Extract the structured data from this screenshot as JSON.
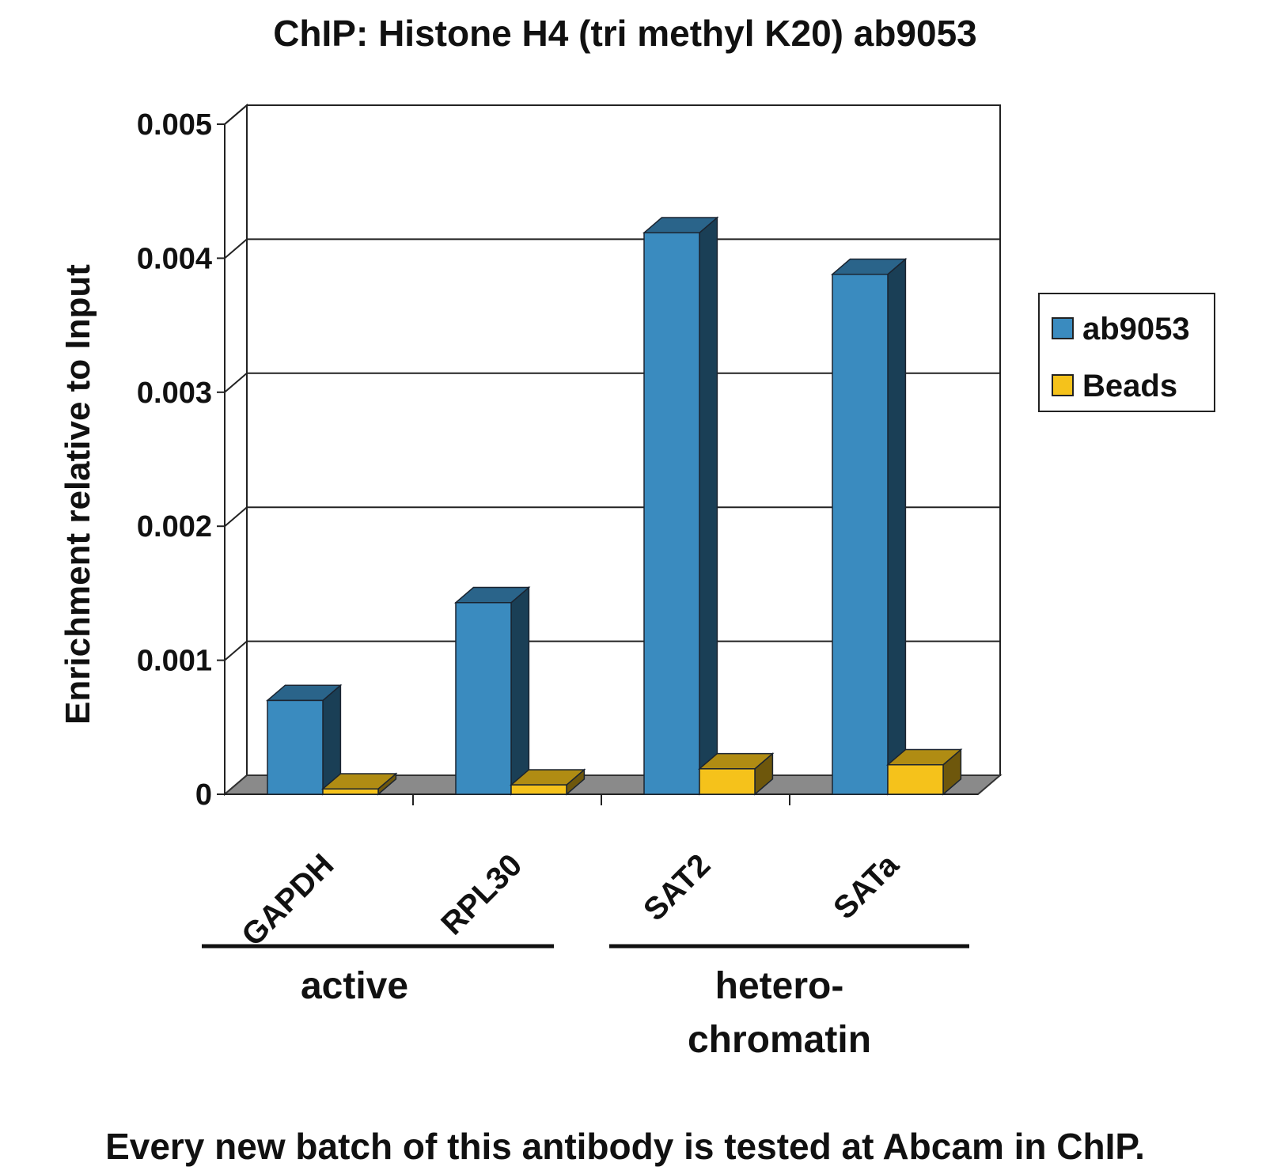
{
  "chart_data": {
    "type": "bar",
    "title": "ChIP: Histone H4 (tri methyl K20) ab9053",
    "ylabel": "Enrichment relative to Input",
    "xlabel": "",
    "ylim": [
      0,
      0.005
    ],
    "yticks": [
      "0",
      "0.001",
      "0.002",
      "0.003",
      "0.004",
      "0.005"
    ],
    "categories": [
      "GAPDH",
      "RPL30",
      "SAT2",
      "SATa"
    ],
    "series": [
      {
        "name": "ab9053",
        "color": "#3a8bbf",
        "values": [
          0.0007,
          0.00143,
          0.00419,
          0.00388
        ]
      },
      {
        "name": "Beads",
        "color": "#f5c21b",
        "values": [
          4e-05,
          7e-05,
          0.00019,
          0.00022
        ]
      }
    ],
    "groups": [
      {
        "label": "active",
        "categories": [
          "GAPDH",
          "RPL30"
        ]
      },
      {
        "label": "hetero-\nchromatin",
        "categories": [
          "SAT2",
          "SATa"
        ]
      }
    ],
    "grid": true,
    "legend": "right"
  },
  "caption": "Every new batch of this antibody is tested at Abcam in ChIP."
}
